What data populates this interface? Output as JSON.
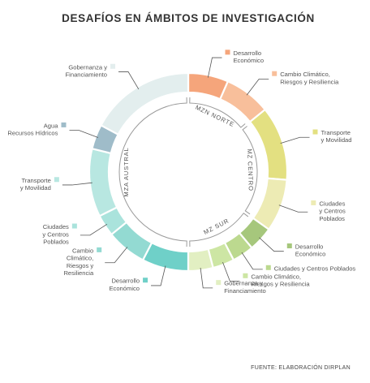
{
  "chart_data": {
    "type": "donut",
    "title": "DESAFÍOS EN ÁMBITOS DE INVESTIGACIÓN",
    "source": "FUENTE: ELABORACIÓN DIRPLAN",
    "zones": [
      {
        "name": "MZN NORTE"
      },
      {
        "name": "MZ CENTRO"
      },
      {
        "name": "MZ SUR"
      },
      {
        "name": "MZA AUSTRAL"
      }
    ],
    "slices": [
      {
        "zone": "MZN NORTE",
        "label": [
          "Desarrollo",
          "Económico"
        ],
        "value": 6.5,
        "color": "#f5a57b"
      },
      {
        "zone": "MZN NORTE",
        "label": [
          "Cambio Climático,",
          "Riesgos y Resiliencia"
        ],
        "value": 7.5,
        "color": "#f8bf9b"
      },
      {
        "zone": "MZ CENTRO",
        "label": [
          "Transporte",
          "y Movilidad"
        ],
        "value": 12.0,
        "color": "#e3e081"
      },
      {
        "zone": "MZ CENTRO",
        "label": [
          "Ciudades",
          "y Centros",
          "Poblados"
        ],
        "value": 8.5,
        "color": "#edebb4"
      },
      {
        "zone": "MZ SUR",
        "label": [
          "Desarrollo",
          "Económico"
        ],
        "value": 4.0,
        "color": "#a6c77c"
      },
      {
        "zone": "MZ SUR",
        "label": [
          "Ciudades y Centros Poblados"
        ],
        "value": 3.5,
        "color": "#bcd98f"
      },
      {
        "zone": "MZ SUR",
        "label": [
          "Cambio Climático,",
          "Riesgos y Resiliencia"
        ],
        "value": 3.5,
        "color": "#cde6a4"
      },
      {
        "zone": "MZ SUR",
        "label": [
          "Gobernanza y",
          "Financiamiento"
        ],
        "value": 4.0,
        "color": "#e2efc2"
      },
      {
        "zone": "MZA AUSTRAL",
        "label": [
          "Desarrollo",
          "Económico"
        ],
        "value": 7.5,
        "color": "#6fd0c8"
      },
      {
        "zone": "MZA AUSTRAL",
        "label": [
          "Cambio",
          "Climático,",
          "Riesgos y",
          "Resiliencia"
        ],
        "value": 6.5,
        "color": "#93dad2"
      },
      {
        "zone": "MZA AUSTRAL",
        "label": [
          "Ciudades",
          "y Centros",
          "Poblados"
        ],
        "value": 3.5,
        "color": "#aae3dc"
      },
      {
        "zone": "MZA AUSTRAL",
        "label": [
          "Transporte",
          "y Movilidad"
        ],
        "value": 11.0,
        "color": "#b8e7e1"
      },
      {
        "zone": "MZA AUSTRAL",
        "label": [
          "Agua",
          "Recursos Hídricos"
        ],
        "value": 4.0,
        "color": "#9fbcc9"
      },
      {
        "zone": "MZA AUSTRAL",
        "label": [
          "Gobernanza y",
          "Financiamiento"
        ],
        "value": 17.0,
        "color": "#e3eeee"
      }
    ]
  }
}
